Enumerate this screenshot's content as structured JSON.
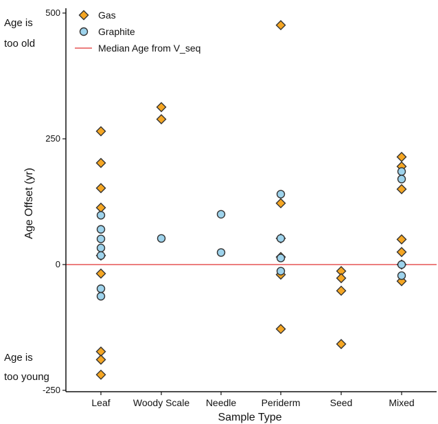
{
  "chart_data": {
    "type": "scatter",
    "xlabel": "Sample Type",
    "ylabel": "Age Offset (yr)",
    "categories": [
      "Leaf",
      "Woody Scale",
      "Needle",
      "Periderm",
      "Seed",
      "Mixed"
    ],
    "ylim": [
      -250,
      500
    ],
    "yticks": [
      500,
      250,
      0,
      -250
    ],
    "grid": false,
    "legend_position": "top-left",
    "series": [
      {
        "name": "Gas",
        "marker": "diamond",
        "color": "#F5A623",
        "points": [
          {
            "cat": "Leaf",
            "y": 265
          },
          {
            "cat": "Leaf",
            "y": 202
          },
          {
            "cat": "Leaf",
            "y": 152
          },
          {
            "cat": "Leaf",
            "y": 113
          },
          {
            "cat": "Leaf",
            "y": 18
          },
          {
            "cat": "Leaf",
            "y": -18
          },
          {
            "cat": "Leaf",
            "y": -173
          },
          {
            "cat": "Leaf",
            "y": -189
          },
          {
            "cat": "Leaf",
            "y": -219
          },
          {
            "cat": "Woody Scale",
            "y": 313
          },
          {
            "cat": "Woody Scale",
            "y": 289
          },
          {
            "cat": "Periderm",
            "y": 476
          },
          {
            "cat": "Periderm",
            "y": 122
          },
          {
            "cat": "Periderm",
            "y": 52
          },
          {
            "cat": "Periderm",
            "y": 15
          },
          {
            "cat": "Periderm",
            "y": -20
          },
          {
            "cat": "Periderm",
            "y": -128
          },
          {
            "cat": "Seed",
            "y": -13
          },
          {
            "cat": "Seed",
            "y": -27
          },
          {
            "cat": "Seed",
            "y": -52
          },
          {
            "cat": "Seed",
            "y": -158
          },
          {
            "cat": "Mixed",
            "y": 214
          },
          {
            "cat": "Mixed",
            "y": 195
          },
          {
            "cat": "Mixed",
            "y": 150
          },
          {
            "cat": "Mixed",
            "y": 50
          },
          {
            "cat": "Mixed",
            "y": 25
          },
          {
            "cat": "Mixed",
            "y": 0
          },
          {
            "cat": "Mixed",
            "y": -33
          }
        ]
      },
      {
        "name": "Graphite",
        "marker": "circle",
        "color": "#9ED3EC",
        "points": [
          {
            "cat": "Leaf",
            "y": 98
          },
          {
            "cat": "Leaf",
            "y": 70
          },
          {
            "cat": "Leaf",
            "y": 51
          },
          {
            "cat": "Leaf",
            "y": 33
          },
          {
            "cat": "Leaf",
            "y": 18
          },
          {
            "cat": "Leaf",
            "y": -48
          },
          {
            "cat": "Leaf",
            "y": -63
          },
          {
            "cat": "Woody Scale",
            "y": 52
          },
          {
            "cat": "Needle",
            "y": 100
          },
          {
            "cat": "Needle",
            "y": 24
          },
          {
            "cat": "Periderm",
            "y": 140
          },
          {
            "cat": "Periderm",
            "y": 52
          },
          {
            "cat": "Periderm",
            "y": 13
          },
          {
            "cat": "Periderm",
            "y": -13
          },
          {
            "cat": "Mixed",
            "y": 185
          },
          {
            "cat": "Mixed",
            "y": 170
          },
          {
            "cat": "Mixed",
            "y": 0
          },
          {
            "cat": "Mixed",
            "y": -22
          }
        ]
      },
      {
        "name": "Median Age from V_seq",
        "type": "hline",
        "y": 0,
        "color": "#E03030"
      }
    ],
    "annotations": [
      {
        "text_lines": [
          "Age is",
          "too old"
        ],
        "y": 460
      },
      {
        "text_lines": [
          "Age is",
          "too young"
        ],
        "y": -205
      }
    ]
  }
}
